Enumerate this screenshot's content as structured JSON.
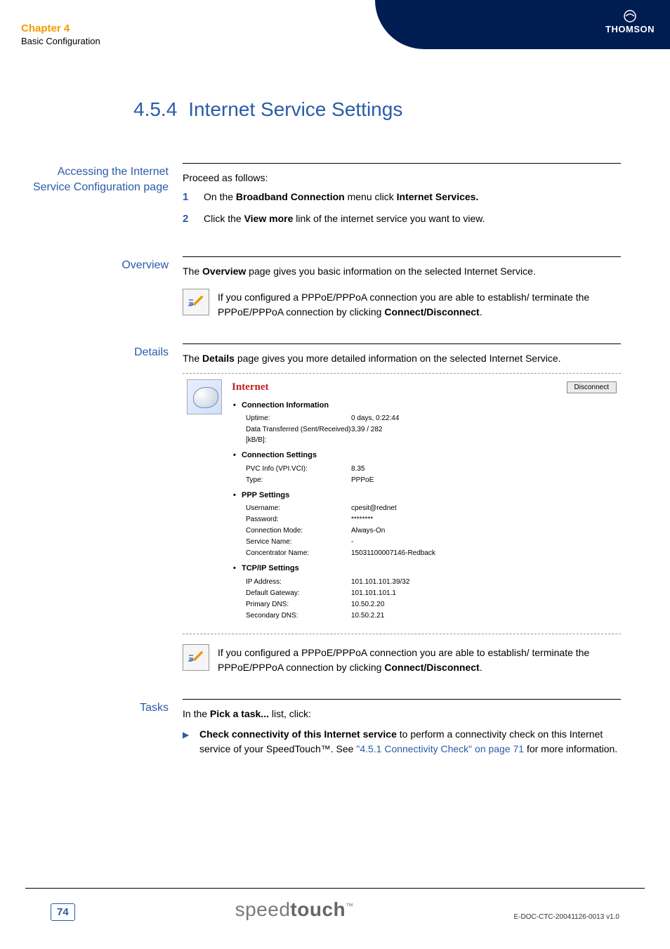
{
  "header": {
    "chapter_title": "Chapter 4",
    "chapter_sub": "Basic Configuration",
    "brand": "THOMSON"
  },
  "title": {
    "num": "4.5.4",
    "text": "Internet Service Settings"
  },
  "sections": {
    "access": {
      "label": "Accessing the Internet Service Configuration page",
      "intro": "Proceed as follows:",
      "step1_pre": "On the ",
      "step1_bold1": "Broadband Connection",
      "step1_mid": " menu click ",
      "step1_bold2": "Internet Services.",
      "step2_pre": "Click the ",
      "step2_bold": "View more",
      "step2_post": " link of the internet service you want to view."
    },
    "overview": {
      "label": "Overview",
      "text_pre": "The ",
      "text_bold": "Overview",
      "text_post": " page gives you basic information on the selected Internet Service.",
      "note_pre": "If you configured a PPPoE/PPPoA connection you are able to establish/ terminate the PPPoE/PPPoA connection by clicking ",
      "note_bold": "Connect/Disconnect",
      "note_post": "."
    },
    "details": {
      "label": "Details",
      "text_pre": "The ",
      "text_bold": "Details",
      "text_post": " page gives you more detailed information on the selected Internet Service.",
      "note_pre": "If you configured a PPPoE/PPPoA connection you are able to establish/ terminate the PPPoE/PPPoA connection by clicking ",
      "note_bold": "Connect/Disconnect",
      "note_post": "."
    },
    "tasks": {
      "label": "Tasks",
      "text_pre": "In the ",
      "text_bold": "Pick a task...",
      "text_post": " list, click:",
      "item_bold": "Check connectivity of this Internet service",
      "item_mid": " to perform a connectivity check on this Internet service of your SpeedTouch™. See ",
      "item_link": "\"4.5.1 Connectivity Check\" on page 71",
      "item_post": " for more information."
    }
  },
  "screenshot": {
    "title": "Internet",
    "disconnect": "Disconnect",
    "groups": [
      {
        "title": "Connection Information",
        "rows": [
          {
            "k": "Uptime:",
            "v": "0 days, 0:22:44"
          },
          {
            "k": "Data Transferred (Sent/Received) [kB/B]:",
            "v": "3,39 / 282"
          }
        ]
      },
      {
        "title": "Connection Settings",
        "rows": [
          {
            "k": "PVC Info (VPI.VCI):",
            "v": "8.35"
          },
          {
            "k": "Type:",
            "v": "PPPoE"
          }
        ]
      },
      {
        "title": "PPP Settings",
        "rows": [
          {
            "k": "Username:",
            "v": "cpesit@rednet"
          },
          {
            "k": "Password:",
            "v": "********"
          },
          {
            "k": "Connection Mode:",
            "v": "Always-On"
          },
          {
            "k": "Service Name:",
            "v": "-"
          },
          {
            "k": "Concentrator Name:",
            "v": "15031100007146-Redback"
          }
        ]
      },
      {
        "title": "TCP/IP Settings",
        "rows": [
          {
            "k": "IP Address:",
            "v": "101.101.101.39/32"
          },
          {
            "k": "Default Gateway:",
            "v": "101.101.101.1"
          },
          {
            "k": "Primary DNS:",
            "v": "10.50.2.20"
          },
          {
            "k": "Secondary DNS:",
            "v": "10.50.2.21"
          }
        ]
      }
    ]
  },
  "footer": {
    "page": "74",
    "brand_light": "speed",
    "brand_bold": "touch",
    "tm": "™",
    "docid": "E-DOC-CTC-20041126-0013 v1.0"
  },
  "colors": {
    "accent_orange": "#f49b00",
    "accent_blue": "#2a5ba8",
    "dark_navy": "#001d52",
    "shot_title_red": "#c02020"
  }
}
